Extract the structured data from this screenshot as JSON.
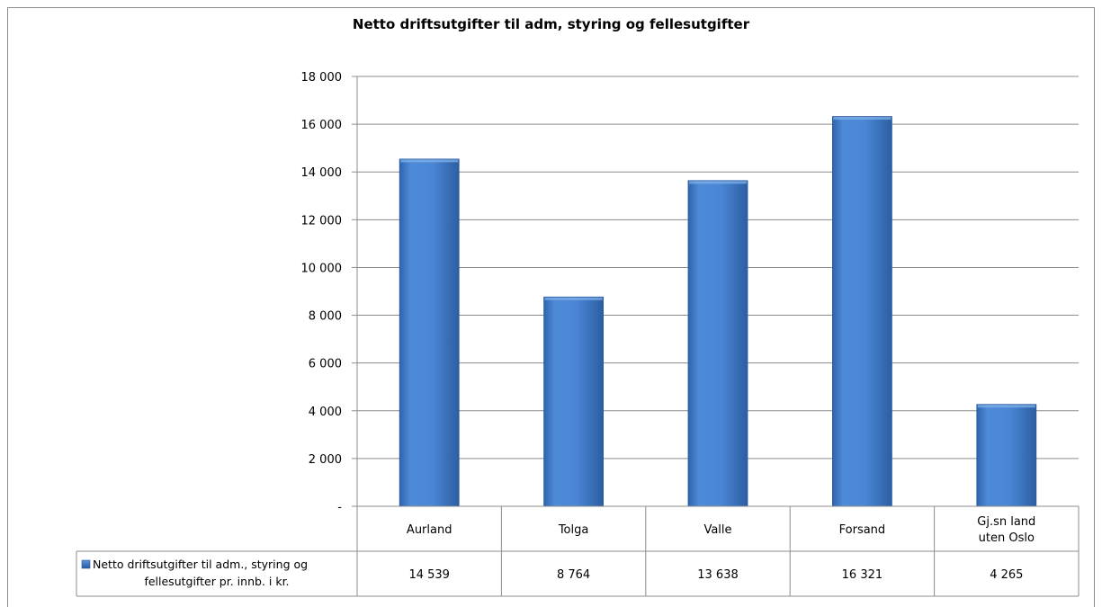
{
  "chart_data": {
    "type": "bar",
    "title": "Netto driftsutgifter til adm, styring og fellesutgifter",
    "categories": [
      [
        "Aurland"
      ],
      [
        "Tolga"
      ],
      [
        "Valle"
      ],
      [
        "Forsand"
      ],
      [
        "Gj.sn land",
        "uten Oslo"
      ]
    ],
    "series": [
      {
        "name_lines": [
          "Netto driftsutgifter til adm., styring og",
          "fellesutgifter pr. innb. i kr."
        ],
        "values": [
          14539,
          8764,
          13638,
          16321,
          4265
        ],
        "value_labels": [
          "14 539",
          "8 764",
          "13 638",
          "16 321",
          "4 265"
        ],
        "color": "#4a86d4"
      }
    ],
    "ylim": [
      0,
      18000
    ],
    "y_ticks": [
      0,
      2000,
      4000,
      6000,
      8000,
      10000,
      12000,
      14000,
      16000,
      18000
    ],
    "y_tick_labels": [
      "-",
      "2 000",
      "4 000",
      "6 000",
      "8 000",
      "10 000",
      "12 000",
      "14 000",
      "16 000",
      "18 000"
    ],
    "grid": true,
    "legend": "data-table"
  }
}
